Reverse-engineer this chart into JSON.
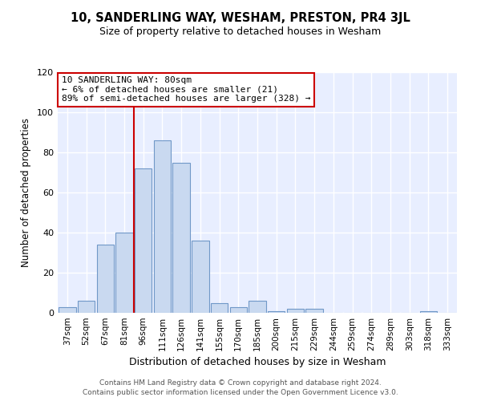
{
  "title": "10, SANDERLING WAY, WESHAM, PRESTON, PR4 3JL",
  "subtitle": "Size of property relative to detached houses in Wesham",
  "xlabel": "Distribution of detached houses by size in Wesham",
  "ylabel": "Number of detached properties",
  "bar_labels": [
    "37sqm",
    "52sqm",
    "67sqm",
    "81sqm",
    "96sqm",
    "111sqm",
    "126sqm",
    "141sqm",
    "155sqm",
    "170sqm",
    "185sqm",
    "200sqm",
    "215sqm",
    "229sqm",
    "244sqm",
    "259sqm",
    "274sqm",
    "289sqm",
    "303sqm",
    "318sqm",
    "333sqm"
  ],
  "bar_values": [
    3,
    6,
    34,
    40,
    72,
    86,
    75,
    36,
    5,
    3,
    6,
    1,
    2,
    2,
    0,
    0,
    0,
    0,
    0,
    1,
    0
  ],
  "bar_color": "#c9d9f0",
  "bar_edge_color": "#7098c8",
  "vline_x_idx": 3.5,
  "vline_color": "#cc0000",
  "annotation_text": "10 SANDERLING WAY: 80sqm\n← 6% of detached houses are smaller (21)\n89% of semi-detached houses are larger (328) →",
  "annotation_box_edge": "#cc0000",
  "ylim": [
    0,
    120
  ],
  "yticks": [
    0,
    20,
    40,
    60,
    80,
    100,
    120
  ],
  "background_color": "#e8eeff",
  "grid_color": "#ffffff",
  "footer1": "Contains HM Land Registry data © Crown copyright and database right 2024.",
  "footer2": "Contains public sector information licensed under the Open Government Licence v3.0."
}
